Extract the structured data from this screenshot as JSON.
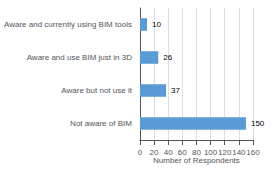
{
  "chart_data": {
    "type": "bar",
    "orientation": "horizontal",
    "categories": [
      "Not aware of BIM",
      "Aware but not use it",
      "Aware and use BIM just in 3D",
      "Aware and currently using BIM tools"
    ],
    "values": [
      150,
      37,
      26,
      10
    ],
    "color": "#5b9bd5",
    "xlabel": "Number of Respondents",
    "xlim": [
      0,
      160
    ],
    "xticks": [
      0,
      20,
      40,
      60,
      80,
      100,
      120,
      140,
      160
    ],
    "grid": true,
    "data_labels": true
  }
}
